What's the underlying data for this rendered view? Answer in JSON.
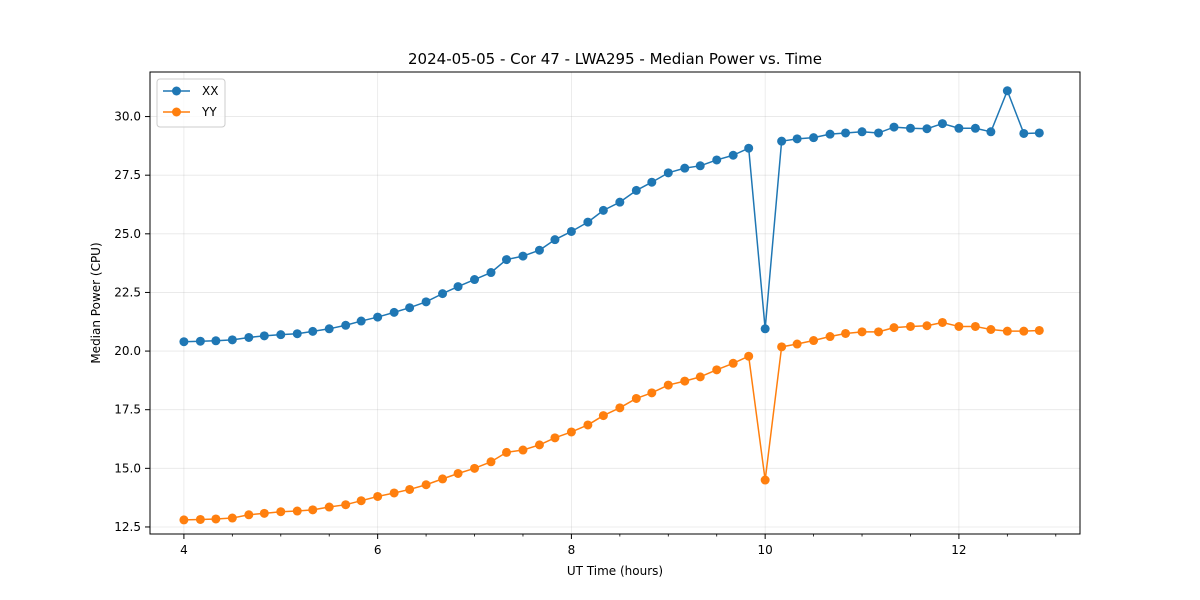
{
  "chart_data": {
    "type": "line",
    "title": "2024-05-05 - Cor 47 - LWA295 - Median Power vs. Time",
    "xlabel": "UT Time (hours)",
    "ylabel": "Median Power (CPU)",
    "xlim": [
      3.65,
      13.25
    ],
    "ylim": [
      12.2,
      31.9
    ],
    "xticks": [
      4,
      6,
      8,
      10,
      12
    ],
    "xtick_labels": [
      "4",
      "6",
      "8",
      "10",
      "12"
    ],
    "yticks": [
      12.5,
      15.0,
      17.5,
      20.0,
      22.5,
      25.0,
      27.5,
      30.0
    ],
    "ytick_labels": [
      "12.5",
      "15.0",
      "17.5",
      "20.0",
      "22.5",
      "25.0",
      "27.5",
      "30.0"
    ],
    "grid": true,
    "legend_position": "top-left",
    "x": [
      4.0,
      4.17,
      4.33,
      4.5,
      4.67,
      4.83,
      5.0,
      5.17,
      5.33,
      5.5,
      5.67,
      5.83,
      6.0,
      6.17,
      6.33,
      6.5,
      6.67,
      6.83,
      7.0,
      7.17,
      7.33,
      7.5,
      7.67,
      7.83,
      8.0,
      8.17,
      8.33,
      8.5,
      8.67,
      8.83,
      9.0,
      9.17,
      9.33,
      9.5,
      9.67,
      9.83,
      10.0,
      10.17,
      10.33,
      10.5,
      10.67,
      10.83,
      11.0,
      11.17,
      11.33,
      11.5,
      11.67,
      11.83,
      12.0,
      12.17,
      12.33,
      12.5,
      12.67,
      12.83
    ],
    "series": [
      {
        "name": "XX",
        "color": "#1f77b4",
        "values": [
          20.4,
          20.42,
          20.44,
          20.48,
          20.58,
          20.65,
          20.7,
          20.74,
          20.84,
          20.95,
          21.1,
          21.28,
          21.45,
          21.65,
          21.85,
          22.1,
          22.45,
          22.75,
          23.05,
          23.35,
          23.9,
          24.05,
          24.3,
          24.75,
          25.1,
          25.5,
          26.0,
          26.35,
          26.85,
          27.2,
          27.6,
          27.8,
          27.9,
          28.15,
          28.35,
          28.65,
          20.95,
          28.95,
          29.05,
          29.1,
          29.25,
          29.3,
          29.35,
          29.3,
          29.55,
          29.5,
          29.48,
          29.7,
          29.5,
          29.5,
          29.35,
          31.1,
          29.28,
          29.3
        ]
      },
      {
        "name": "YY",
        "color": "#ff7f0e",
        "values": [
          12.8,
          12.82,
          12.84,
          12.88,
          13.02,
          13.08,
          13.15,
          13.18,
          13.23,
          13.35,
          13.45,
          13.62,
          13.8,
          13.95,
          14.1,
          14.3,
          14.55,
          14.78,
          15.0,
          15.28,
          15.68,
          15.78,
          16.0,
          16.3,
          16.55,
          16.85,
          17.25,
          17.58,
          17.98,
          18.22,
          18.55,
          18.72,
          18.9,
          19.2,
          19.48,
          19.78,
          14.5,
          20.18,
          20.3,
          20.45,
          20.62,
          20.75,
          20.82,
          20.82,
          21.0,
          21.05,
          21.08,
          21.22,
          21.05,
          21.05,
          20.92,
          20.85,
          20.85,
          20.88
        ]
      }
    ]
  }
}
